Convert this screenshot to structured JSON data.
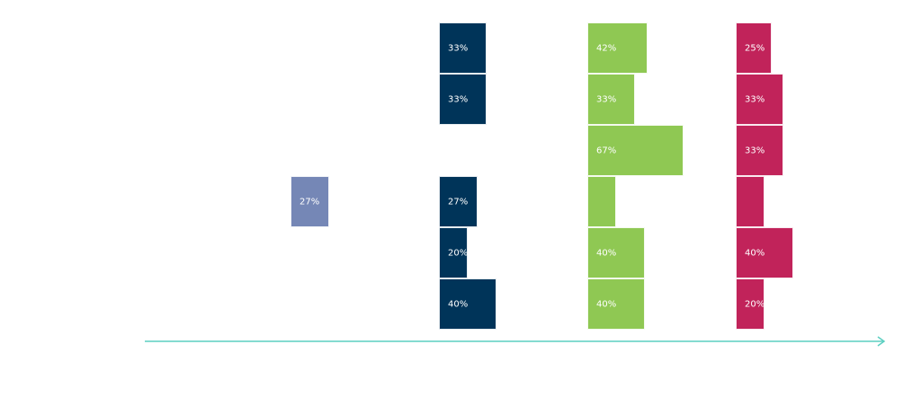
{
  "chart_data": {
    "type": "bar",
    "title": "",
    "xlabel": "",
    "ylabel": "",
    "colors": [
      "#7587b6",
      "#003459",
      "#8fc853",
      "#c1235a"
    ],
    "series": [
      {
        "values": [
          null,
          null,
          null,
          27,
          null,
          null
        ],
        "labels": [
          "",
          "",
          "",
          "27%",
          "",
          ""
        ]
      },
      {
        "values": [
          33,
          33,
          null,
          27,
          20,
          40
        ],
        "labels": [
          "33%",
          "33%",
          "",
          "27%",
          "20%",
          "40%"
        ]
      },
      {
        "values": [
          42,
          33,
          67,
          20,
          40,
          40
        ],
        "labels": [
          "42%",
          "33%",
          "67%",
          "",
          "40%",
          "40%"
        ]
      },
      {
        "values": [
          25,
          33,
          33,
          20,
          40,
          20
        ],
        "labels": [
          "25%",
          "33%",
          "33%",
          "",
          "40%",
          "20%"
        ]
      }
    ],
    "axis_color": "#5ccfc1"
  }
}
